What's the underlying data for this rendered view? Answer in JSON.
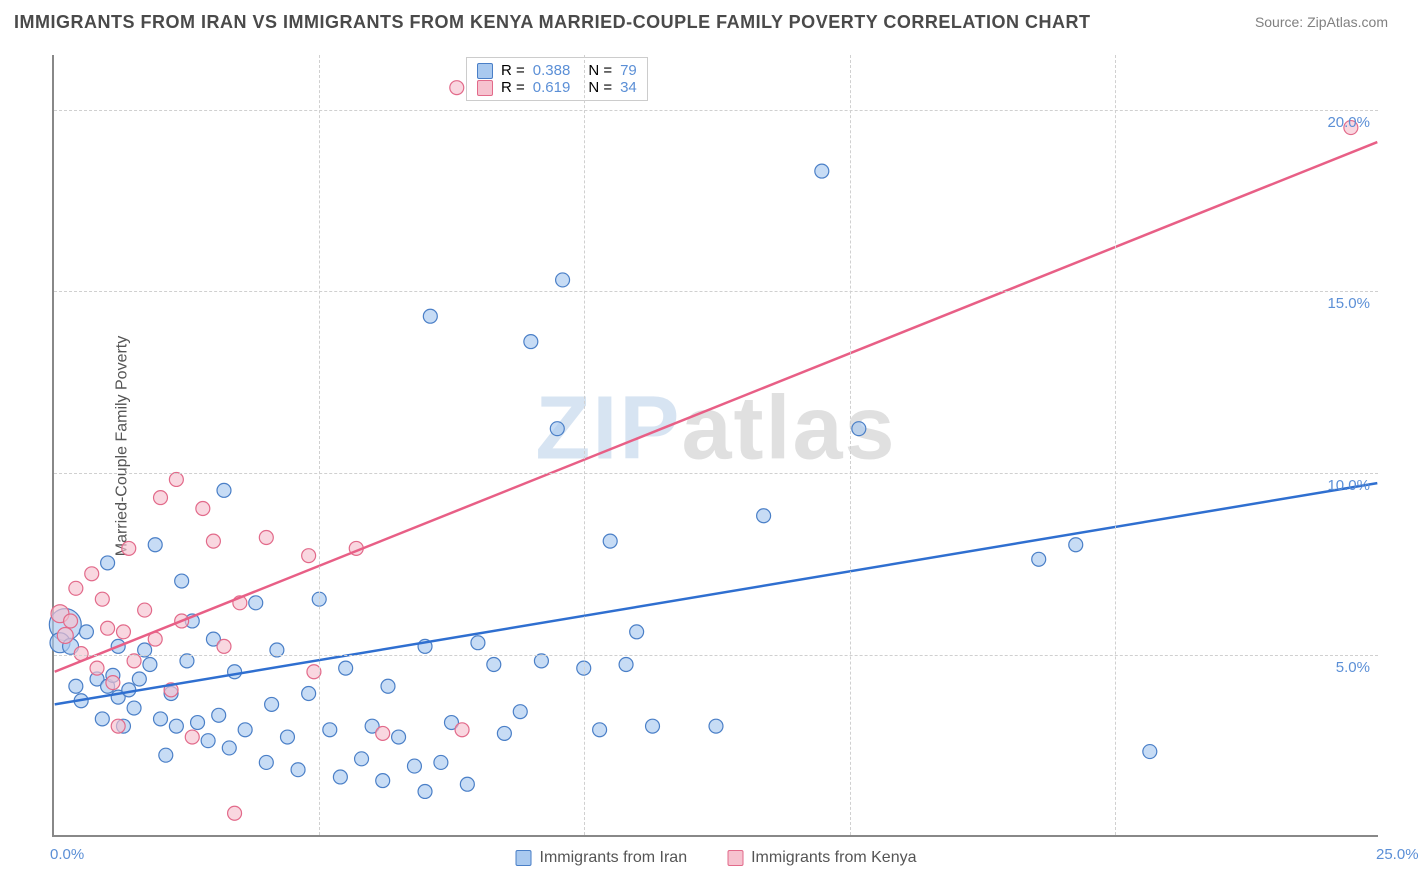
{
  "title": "IMMIGRANTS FROM IRAN VS IMMIGRANTS FROM KENYA MARRIED-COUPLE FAMILY POVERTY CORRELATION CHART",
  "source": "Source: ZipAtlas.com",
  "y_axis_label": "Married-Couple Family Poverty",
  "watermark_a": "ZIP",
  "watermark_b": "atlas",
  "chart": {
    "type": "scatter",
    "xlim": [
      0,
      25
    ],
    "ylim": [
      0,
      21.5
    ],
    "x_ticks": [
      0,
      5,
      10,
      15,
      20,
      25
    ],
    "x_tick_labels": [
      "0.0%",
      "",
      "",
      "",
      "",
      "25.0%"
    ],
    "y_ticks": [
      5,
      10,
      15,
      20
    ],
    "y_tick_labels": [
      "5.0%",
      "10.0%",
      "15.0%",
      "20.0%"
    ],
    "background_color": "#ffffff",
    "grid_color": "#d0d0d0",
    "series": [
      {
        "name": "Immigrants from Iran",
        "fill": "#a9c9ef",
        "stroke": "#4a7fc7",
        "line_color": "#2f6fd0",
        "r_value": "0.388",
        "n_value": "79",
        "trend": {
          "x1": 0,
          "y1": 3.6,
          "x2": 25,
          "y2": 9.7
        },
        "points": [
          {
            "x": 0.2,
            "y": 5.8,
            "r": 16
          },
          {
            "x": 0.1,
            "y": 5.3,
            "r": 10
          },
          {
            "x": 0.3,
            "y": 5.2,
            "r": 8
          },
          {
            "x": 0.6,
            "y": 5.6,
            "r": 7
          },
          {
            "x": 0.4,
            "y": 4.1,
            "r": 7
          },
          {
            "x": 0.8,
            "y": 4.3,
            "r": 7
          },
          {
            "x": 1.0,
            "y": 4.1,
            "r": 7
          },
          {
            "x": 1.2,
            "y": 3.8,
            "r": 7
          },
          {
            "x": 1.1,
            "y": 4.4,
            "r": 7
          },
          {
            "x": 1.4,
            "y": 4.0,
            "r": 7
          },
          {
            "x": 1.5,
            "y": 3.5,
            "r": 7
          },
          {
            "x": 1.6,
            "y": 4.3,
            "r": 7
          },
          {
            "x": 0.5,
            "y": 3.7,
            "r": 7
          },
          {
            "x": 1.0,
            "y": 7.5,
            "r": 7
          },
          {
            "x": 1.2,
            "y": 5.2,
            "r": 7
          },
          {
            "x": 1.8,
            "y": 4.7,
            "r": 7
          },
          {
            "x": 2.0,
            "y": 3.2,
            "r": 7
          },
          {
            "x": 2.2,
            "y": 3.9,
            "r": 7
          },
          {
            "x": 2.3,
            "y": 3.0,
            "r": 7
          },
          {
            "x": 2.5,
            "y": 4.8,
            "r": 7
          },
          {
            "x": 2.7,
            "y": 3.1,
            "r": 7
          },
          {
            "x": 2.9,
            "y": 2.6,
            "r": 7
          },
          {
            "x": 3.0,
            "y": 5.4,
            "r": 7
          },
          {
            "x": 3.1,
            "y": 3.3,
            "r": 7
          },
          {
            "x": 3.3,
            "y": 2.4,
            "r": 7
          },
          {
            "x": 1.9,
            "y": 8.0,
            "r": 7
          },
          {
            "x": 2.1,
            "y": 2.2,
            "r": 7
          },
          {
            "x": 3.4,
            "y": 4.5,
            "r": 7
          },
          {
            "x": 3.6,
            "y": 2.9,
            "r": 7
          },
          {
            "x": 3.8,
            "y": 6.4,
            "r": 7
          },
          {
            "x": 4.0,
            "y": 2.0,
            "r": 7
          },
          {
            "x": 4.2,
            "y": 5.1,
            "r": 7
          },
          {
            "x": 4.4,
            "y": 2.7,
            "r": 7
          },
          {
            "x": 4.6,
            "y": 1.8,
            "r": 7
          },
          {
            "x": 4.8,
            "y": 3.9,
            "r": 7
          },
          {
            "x": 5.0,
            "y": 6.5,
            "r": 7
          },
          {
            "x": 5.2,
            "y": 2.9,
            "r": 7
          },
          {
            "x": 5.4,
            "y": 1.6,
            "r": 7
          },
          {
            "x": 5.5,
            "y": 4.6,
            "r": 7
          },
          {
            "x": 5.8,
            "y": 2.1,
            "r": 7
          },
          {
            "x": 6.0,
            "y": 3.0,
            "r": 7
          },
          {
            "x": 6.2,
            "y": 1.5,
            "r": 7
          },
          {
            "x": 6.5,
            "y": 2.7,
            "r": 7
          },
          {
            "x": 6.8,
            "y": 1.9,
            "r": 7
          },
          {
            "x": 7.0,
            "y": 5.2,
            "r": 7
          },
          {
            "x": 7.1,
            "y": 14.3,
            "r": 7
          },
          {
            "x": 7.3,
            "y": 2.0,
            "r": 7
          },
          {
            "x": 7.5,
            "y": 3.1,
            "r": 7
          },
          {
            "x": 7.8,
            "y": 1.4,
            "r": 7
          },
          {
            "x": 8.0,
            "y": 5.3,
            "r": 7
          },
          {
            "x": 8.3,
            "y": 4.7,
            "r": 7
          },
          {
            "x": 8.5,
            "y": 2.8,
            "r": 7
          },
          {
            "x": 9.0,
            "y": 13.6,
            "r": 7
          },
          {
            "x": 9.2,
            "y": 4.8,
            "r": 7
          },
          {
            "x": 9.5,
            "y": 11.2,
            "r": 7
          },
          {
            "x": 9.6,
            "y": 15.3,
            "r": 7
          },
          {
            "x": 10.0,
            "y": 4.6,
            "r": 7
          },
          {
            "x": 10.3,
            "y": 2.9,
            "r": 7
          },
          {
            "x": 10.5,
            "y": 8.1,
            "r": 7
          },
          {
            "x": 10.8,
            "y": 4.7,
            "r": 7
          },
          {
            "x": 11.0,
            "y": 5.6,
            "r": 7
          },
          {
            "x": 11.3,
            "y": 3.0,
            "r": 7
          },
          {
            "x": 12.5,
            "y": 3.0,
            "r": 7
          },
          {
            "x": 13.4,
            "y": 8.8,
            "r": 7
          },
          {
            "x": 14.5,
            "y": 18.3,
            "r": 7
          },
          {
            "x": 15.2,
            "y": 11.2,
            "r": 7
          },
          {
            "x": 18.6,
            "y": 7.6,
            "r": 7
          },
          {
            "x": 19.3,
            "y": 8.0,
            "r": 7
          },
          {
            "x": 20.7,
            "y": 2.3,
            "r": 7
          },
          {
            "x": 1.3,
            "y": 3.0,
            "r": 7
          },
          {
            "x": 2.6,
            "y": 5.9,
            "r": 7
          },
          {
            "x": 3.2,
            "y": 9.5,
            "r": 7
          },
          {
            "x": 1.7,
            "y": 5.1,
            "r": 7
          },
          {
            "x": 0.9,
            "y": 3.2,
            "r": 7
          },
          {
            "x": 4.1,
            "y": 3.6,
            "r": 7
          },
          {
            "x": 6.3,
            "y": 4.1,
            "r": 7
          },
          {
            "x": 7.0,
            "y": 1.2,
            "r": 7
          },
          {
            "x": 8.8,
            "y": 3.4,
            "r": 7
          },
          {
            "x": 2.4,
            "y": 7.0,
            "r": 7
          }
        ]
      },
      {
        "name": "Immigrants from Kenya",
        "fill": "#f6c2cf",
        "stroke": "#e26a8a",
        "line_color": "#e85f86",
        "r_value": "0.619",
        "n_value": "34",
        "trend": {
          "x1": 0,
          "y1": 4.5,
          "x2": 25,
          "y2": 19.1
        },
        "points": [
          {
            "x": 0.1,
            "y": 6.1,
            "r": 9
          },
          {
            "x": 0.2,
            "y": 5.5,
            "r": 8
          },
          {
            "x": 0.3,
            "y": 5.9,
            "r": 7
          },
          {
            "x": 0.4,
            "y": 6.8,
            "r": 7
          },
          {
            "x": 0.5,
            "y": 5.0,
            "r": 7
          },
          {
            "x": 0.7,
            "y": 7.2,
            "r": 7
          },
          {
            "x": 0.8,
            "y": 4.6,
            "r": 7
          },
          {
            "x": 0.9,
            "y": 6.5,
            "r": 7
          },
          {
            "x": 1.0,
            "y": 5.7,
            "r": 7
          },
          {
            "x": 1.1,
            "y": 4.2,
            "r": 7
          },
          {
            "x": 1.3,
            "y": 5.6,
            "r": 7
          },
          {
            "x": 1.4,
            "y": 7.9,
            "r": 7
          },
          {
            "x": 1.5,
            "y": 4.8,
            "r": 7
          },
          {
            "x": 1.7,
            "y": 6.2,
            "r": 7
          },
          {
            "x": 1.9,
            "y": 5.4,
            "r": 7
          },
          {
            "x": 2.0,
            "y": 9.3,
            "r": 7
          },
          {
            "x": 2.2,
            "y": 4.0,
            "r": 7
          },
          {
            "x": 2.3,
            "y": 9.8,
            "r": 7
          },
          {
            "x": 2.4,
            "y": 5.9,
            "r": 7
          },
          {
            "x": 2.6,
            "y": 2.7,
            "r": 7
          },
          {
            "x": 2.8,
            "y": 9.0,
            "r": 7
          },
          {
            "x": 3.0,
            "y": 8.1,
            "r": 7
          },
          {
            "x": 3.2,
            "y": 5.2,
            "r": 7
          },
          {
            "x": 3.4,
            "y": 0.6,
            "r": 7
          },
          {
            "x": 3.5,
            "y": 6.4,
            "r": 7
          },
          {
            "x": 4.0,
            "y": 8.2,
            "r": 7
          },
          {
            "x": 4.8,
            "y": 7.7,
            "r": 7
          },
          {
            "x": 4.9,
            "y": 4.5,
            "r": 7
          },
          {
            "x": 5.7,
            "y": 7.9,
            "r": 7
          },
          {
            "x": 6.2,
            "y": 2.8,
            "r": 7
          },
          {
            "x": 7.7,
            "y": 2.9,
            "r": 7
          },
          {
            "x": 7.6,
            "y": 20.6,
            "r": 7
          },
          {
            "x": 24.5,
            "y": 19.5,
            "r": 7
          },
          {
            "x": 1.2,
            "y": 3.0,
            "r": 7
          }
        ]
      }
    ]
  },
  "legend_top": {
    "r_label": "R =",
    "n_label": "N ="
  },
  "legend_bottom": {
    "iran": "Immigrants from Iran",
    "kenya": "Immigrants from Kenya"
  }
}
